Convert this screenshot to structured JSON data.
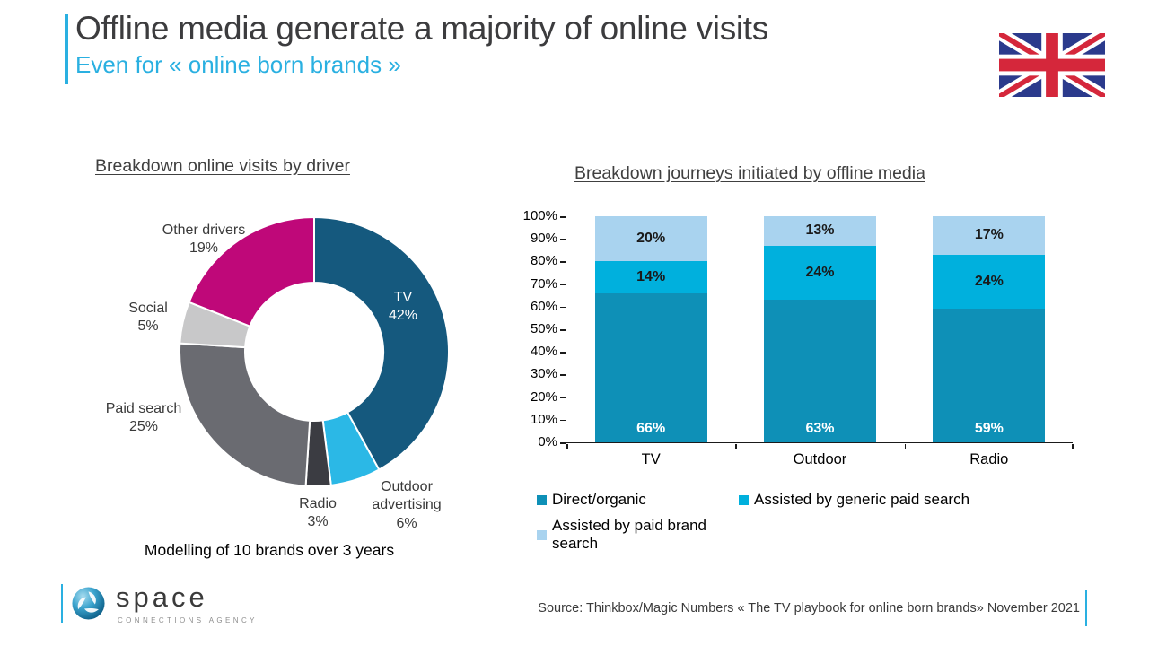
{
  "header": {
    "title": "Offline media generate a majority of online visits",
    "subtitle": "Even for « online born brands »"
  },
  "icons": {
    "flag": "uk-flag",
    "logo_ball": "space-sphere-logo"
  },
  "colors": {
    "accent_cyan": "#2AB0E1",
    "title_text": "#3C3C3E",
    "flag_blue": "#2B3A8C",
    "flag_red": "#D5273B"
  },
  "chart_data": [
    {
      "type": "pie",
      "donut": true,
      "title": "Breakdown online visits by driver",
      "caption": "Modelling of 10 brands over 3 years",
      "slices": [
        {
          "label": "TV",
          "value": 42,
          "pct": "42%",
          "color": "#15597E"
        },
        {
          "label": "Outdoor advertising",
          "value": 6,
          "pct": "6%",
          "color": "#2BB8E6"
        },
        {
          "label": "Radio",
          "value": 3,
          "pct": "3%",
          "color": "#3B3C42"
        },
        {
          "label": "Paid search",
          "value": 25,
          "pct": "25%",
          "color": "#6A6B71"
        },
        {
          "label": "Social",
          "value": 5,
          "pct": "5%",
          "color": "#C8C8C9"
        },
        {
          "label": "Other drivers",
          "value": 19,
          "pct": "19%",
          "color": "#BF0879"
        }
      ]
    },
    {
      "type": "bar",
      "stacked": true,
      "title": "Breakdown journeys initiated by offline media",
      "categories": [
        "TV",
        "Outdoor",
        "Radio"
      ],
      "series": [
        {
          "name": "Direct/organic",
          "color": "#0E90B7",
          "values": [
            66,
            63,
            59
          ],
          "labels": [
            "66%",
            "63%",
            "59%"
          ]
        },
        {
          "name": "Assisted by generic paid search",
          "color": "#00B0DD",
          "values": [
            14,
            24,
            24
          ],
          "labels": [
            "14%",
            "24%",
            "24%"
          ]
        },
        {
          "name": "Assisted by paid brand search",
          "color": "#A9D3EF",
          "values": [
            20,
            13,
            17
          ],
          "labels": [
            "20%",
            "13%",
            "17%"
          ]
        }
      ],
      "ylim": [
        0,
        100
      ],
      "yticks": [
        "0%",
        "10%",
        "20%",
        "30%",
        "40%",
        "50%",
        "60%",
        "70%",
        "80%",
        "90%",
        "100%"
      ],
      "grid": false,
      "legend_position": "bottom"
    }
  ],
  "footer": {
    "logo_name": "space",
    "logo_tagline": "CONNECTIONS AGENCY",
    "source": "Source: Thinkbox/Magic Numbers « The TV playbook for online born brands» November 2021"
  }
}
